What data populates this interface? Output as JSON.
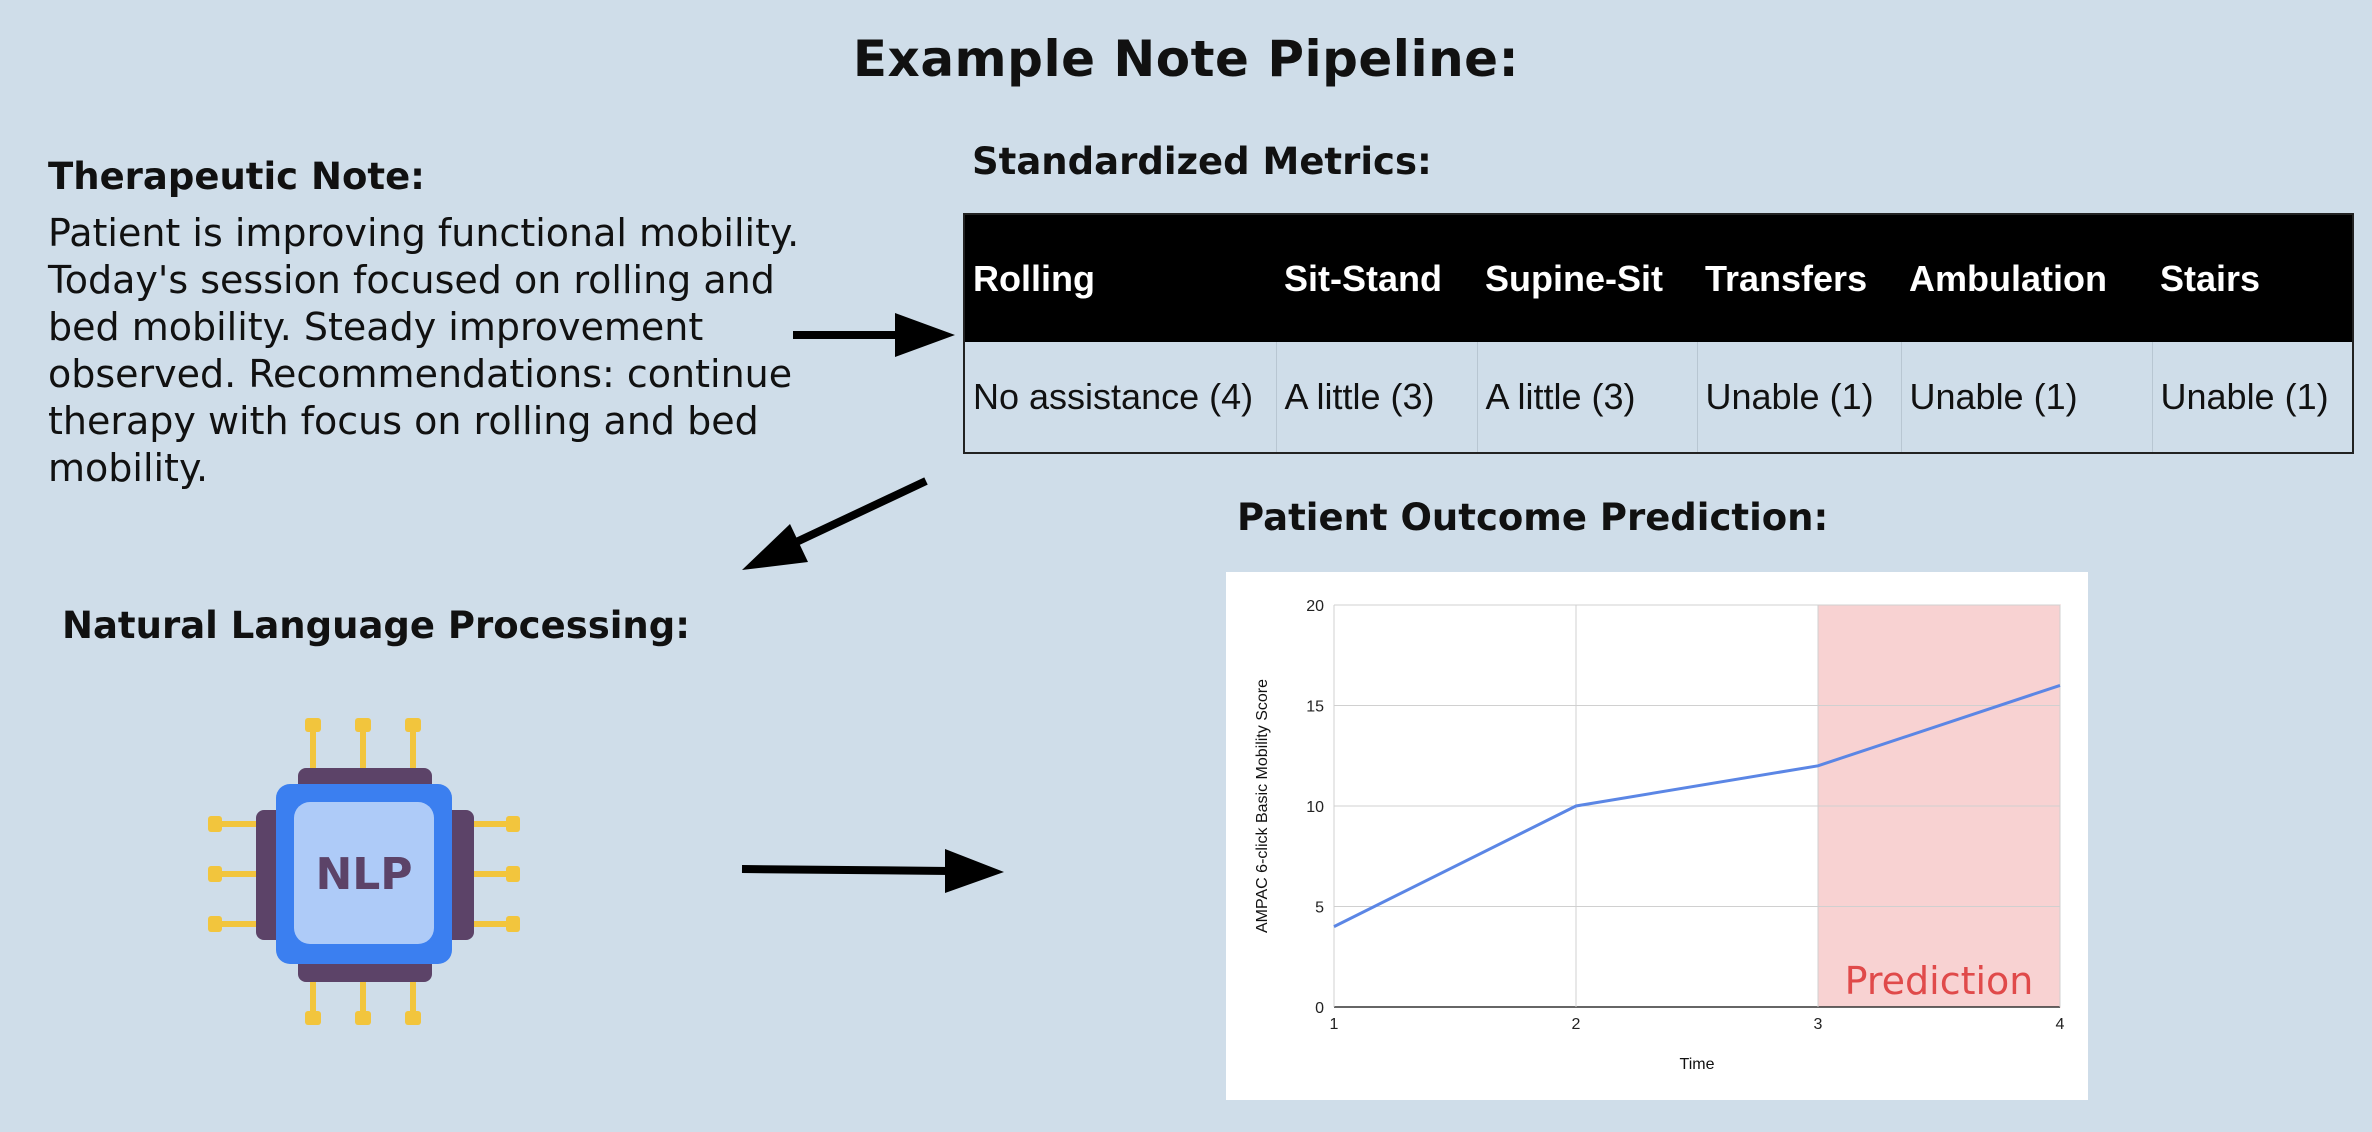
{
  "page": {
    "title": "Example Note Pipeline:"
  },
  "note": {
    "heading": "Therapeutic Note:",
    "text": "Patient is improving functional mobility. Today's session focused on rolling and bed mobility. Steady improvement observed. Recommendations: continue therapy with focus on rolling and bed mobility."
  },
  "metrics": {
    "heading": "Standardized Metrics:",
    "columns": [
      "Rolling",
      "Sit-Stand",
      "Supine-Sit",
      "Transfers",
      "Ambulation",
      "Stairs"
    ],
    "values": [
      "No assistance (4)",
      "A little (3)",
      "A little (3)",
      "Unable (1)",
      "Unable (1)",
      "Unable (1)"
    ]
  },
  "nlp": {
    "heading": "Natural Language Processing:",
    "chip_label": "NLP"
  },
  "outcome": {
    "heading": "Patient Outcome Prediction:"
  },
  "colors": {
    "background": "#cfdde9",
    "line": "#5b86e5",
    "prediction_fill": "#f8d2d2",
    "prediction_text": "#e04a4a",
    "chip_blue": "#3b7ff0",
    "chip_dark": "#5c4368",
    "chip_pins": "#f2c53d"
  },
  "chart_data": {
    "type": "line",
    "x": [
      1,
      2,
      3,
      4
    ],
    "series": [
      {
        "values": [
          4,
          10,
          12,
          16
        ]
      }
    ],
    "xlabel": "Time",
    "ylabel": "AMPAC 6-click Basic Mobility Score",
    "xlim": [
      1,
      4
    ],
    "ylim": [
      0,
      20
    ],
    "x_ticks": [
      1,
      2,
      3,
      4
    ],
    "y_ticks": [
      0,
      5,
      10,
      15,
      20
    ],
    "grid": true,
    "shaded_region": {
      "x_start": 3,
      "x_end": 4,
      "label": "Prediction"
    }
  }
}
